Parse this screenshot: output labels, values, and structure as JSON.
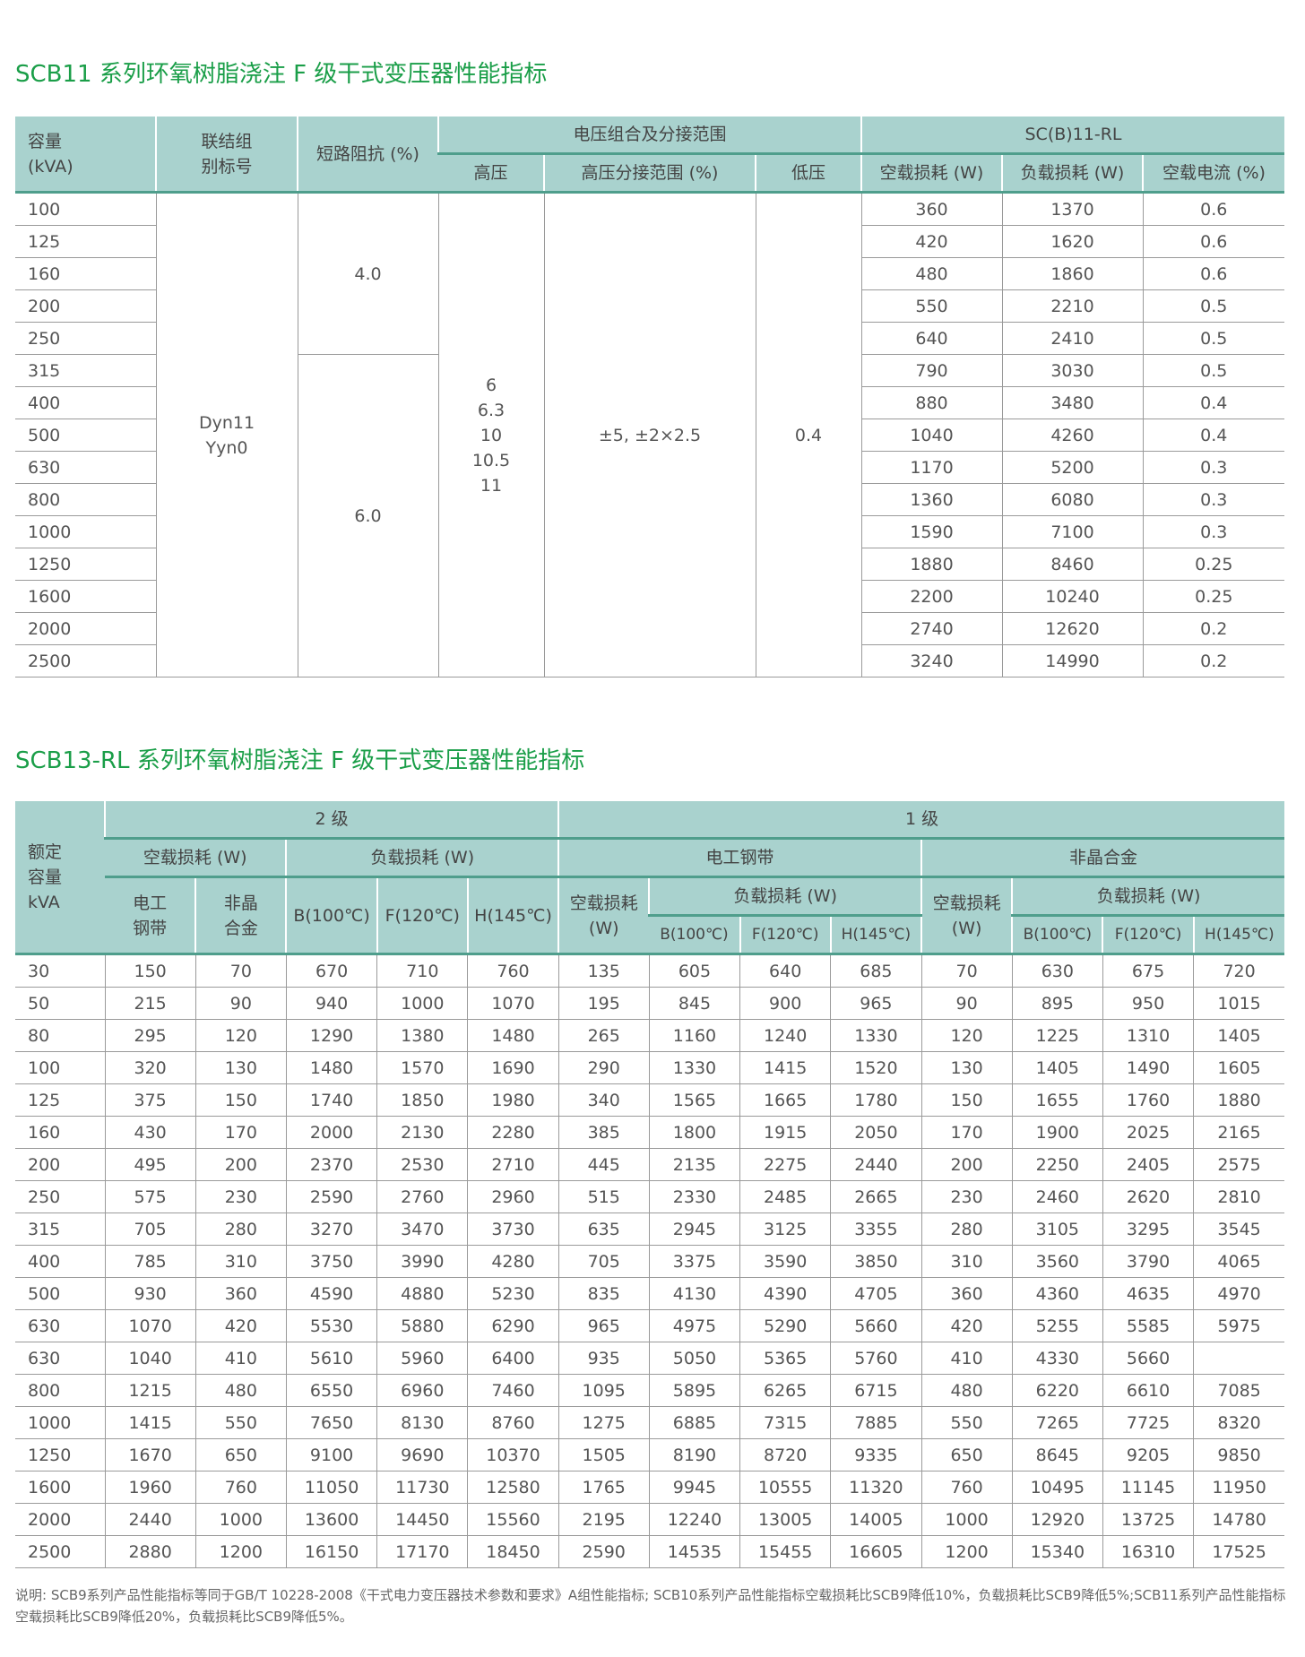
{
  "table1": {
    "title": "SCB11 系列环氧树脂浇注 F 级干式变压器性能指标",
    "headers": {
      "capacity": "容量\n(kVA)",
      "connection": "联结组\n别标号",
      "impedance": "短路阻抗 (%)",
      "voltage_group": "电压组合及分接范围",
      "model_group": "SC(B)11-RL",
      "hv": "高压",
      "hv_tap": "高压分接范围 (%)",
      "lv": "低压",
      "no_load_loss": "空载损耗 (W)",
      "load_loss": "负载损耗 (W)",
      "no_load_current": "空载电流 (%)"
    },
    "connection": "Dyn11\nYyn0",
    "impedance_groups": [
      {
        "value": "4.0",
        "rows": 5
      },
      {
        "value": "6.0",
        "rows": 10
      }
    ],
    "hv": "6\n6.3\n10\n10.5\n11",
    "hv_tap": "±5, ±2×2.5",
    "lv": "0.4",
    "rows": [
      [
        "100",
        "360",
        "1370",
        "0.6"
      ],
      [
        "125",
        "420",
        "1620",
        "0.6"
      ],
      [
        "160",
        "480",
        "1860",
        "0.6"
      ],
      [
        "200",
        "550",
        "2210",
        "0.5"
      ],
      [
        "250",
        "640",
        "2410",
        "0.5"
      ],
      [
        "315",
        "790",
        "3030",
        "0.5"
      ],
      [
        "400",
        "880",
        "3480",
        "0.4"
      ],
      [
        "500",
        "1040",
        "4260",
        "0.4"
      ],
      [
        "630",
        "1170",
        "5200",
        "0.3"
      ],
      [
        "800",
        "1360",
        "6080",
        "0.3"
      ],
      [
        "1000",
        "1590",
        "7100",
        "0.3"
      ],
      [
        "1250",
        "1880",
        "8460",
        "0.25"
      ],
      [
        "1600",
        "2200",
        "10240",
        "0.25"
      ],
      [
        "2000",
        "2740",
        "12620",
        "0.2"
      ],
      [
        "2500",
        "3240",
        "14990",
        "0.2"
      ]
    ]
  },
  "table2": {
    "title": "SCB13-RL 系列环氧树脂浇注 F 级干式变压器性能指标",
    "headers": {
      "capacity": "额定\n容量\nkVA",
      "grade2": "2 级",
      "grade1": "1 级",
      "no_load_loss": "空载损耗 (W)",
      "load_loss": "负载损耗 (W)",
      "silicon_steel": "电工钢带",
      "amorphous": "非晶合金",
      "silicon_steel_2l": "电工\n钢带",
      "amorphous_2l": "非晶\n合金",
      "no_load_loss_2l": "空载损耗\n(W)",
      "b": "B(100℃)",
      "f": "F(120℃)",
      "h": "H(145℃)"
    },
    "rows": [
      [
        "30",
        "150",
        "70",
        "670",
        "710",
        "760",
        "135",
        "605",
        "640",
        "685",
        "70",
        "630",
        "675",
        "720"
      ],
      [
        "50",
        "215",
        "90",
        "940",
        "1000",
        "1070",
        "195",
        "845",
        "900",
        "965",
        "90",
        "895",
        "950",
        "1015"
      ],
      [
        "80",
        "295",
        "120",
        "1290",
        "1380",
        "1480",
        "265",
        "1160",
        "1240",
        "1330",
        "120",
        "1225",
        "1310",
        "1405"
      ],
      [
        "100",
        "320",
        "130",
        "1480",
        "1570",
        "1690",
        "290",
        "1330",
        "1415",
        "1520",
        "130",
        "1405",
        "1490",
        "1605"
      ],
      [
        "125",
        "375",
        "150",
        "1740",
        "1850",
        "1980",
        "340",
        "1565",
        "1665",
        "1780",
        "150",
        "1655",
        "1760",
        "1880"
      ],
      [
        "160",
        "430",
        "170",
        "2000",
        "2130",
        "2280",
        "385",
        "1800",
        "1915",
        "2050",
        "170",
        "1900",
        "2025",
        "2165"
      ],
      [
        "200",
        "495",
        "200",
        "2370",
        "2530",
        "2710",
        "445",
        "2135",
        "2275",
        "2440",
        "200",
        "2250",
        "2405",
        "2575"
      ],
      [
        "250",
        "575",
        "230",
        "2590",
        "2760",
        "2960",
        "515",
        "2330",
        "2485",
        "2665",
        "230",
        "2460",
        "2620",
        "2810"
      ],
      [
        "315",
        "705",
        "280",
        "3270",
        "3470",
        "3730",
        "635",
        "2945",
        "3125",
        "3355",
        "280",
        "3105",
        "3295",
        "3545"
      ],
      [
        "400",
        "785",
        "310",
        "3750",
        "3990",
        "4280",
        "705",
        "3375",
        "3590",
        "3850",
        "310",
        "3560",
        "3790",
        "4065"
      ],
      [
        "500",
        "930",
        "360",
        "4590",
        "4880",
        "5230",
        "835",
        "4130",
        "4390",
        "4705",
        "360",
        "4360",
        "4635",
        "4970"
      ],
      [
        "630",
        "1070",
        "420",
        "5530",
        "5880",
        "6290",
        "965",
        "4975",
        "5290",
        "5660",
        "420",
        "5255",
        "5585",
        "5975"
      ],
      [
        "630",
        "1040",
        "410",
        "5610",
        "5960",
        "6400",
        "935",
        "5050",
        "5365",
        "5760",
        "410",
        "4330",
        "5660",
        ""
      ],
      [
        "800",
        "1215",
        "480",
        "6550",
        "6960",
        "7460",
        "1095",
        "5895",
        "6265",
        "6715",
        "480",
        "6220",
        "6610",
        "7085"
      ],
      [
        "1000",
        "1415",
        "550",
        "7650",
        "8130",
        "8760",
        "1275",
        "6885",
        "7315",
        "7885",
        "550",
        "7265",
        "7725",
        "8320"
      ],
      [
        "1250",
        "1670",
        "650",
        "9100",
        "9690",
        "10370",
        "1505",
        "8190",
        "8720",
        "9335",
        "650",
        "8645",
        "9205",
        "9850"
      ],
      [
        "1600",
        "1960",
        "760",
        "11050",
        "11730",
        "12580",
        "1765",
        "9945",
        "10555",
        "11320",
        "760",
        "10495",
        "11145",
        "11950"
      ],
      [
        "2000",
        "2440",
        "1000",
        "13600",
        "14450",
        "15560",
        "2195",
        "12240",
        "13005",
        "14005",
        "1000",
        "12920",
        "13725",
        "14780"
      ],
      [
        "2500",
        "2880",
        "1200",
        "16150",
        "17170",
        "18450",
        "2590",
        "14535",
        "15455",
        "16605",
        "1200",
        "15340",
        "16310",
        "17525"
      ]
    ]
  },
  "note": "说明: SCB9系列产品性能指标等同于GB/T 10228-2008《干式电力变压器技术参数和要求》A组性能指标; SCB10系列产品性能指标空载损耗比SCB9降低10%，负载损耗比SCB9降低5%;SCB11系列产品性能指标空载损耗比SCB9降低20%，负载损耗比SCB9降低5%。",
  "colors": {
    "title": "#1a9e48",
    "header_bg": "#a9d2ce",
    "header_rule": "#4f9e8c",
    "grid": "#9a9a9a"
  }
}
